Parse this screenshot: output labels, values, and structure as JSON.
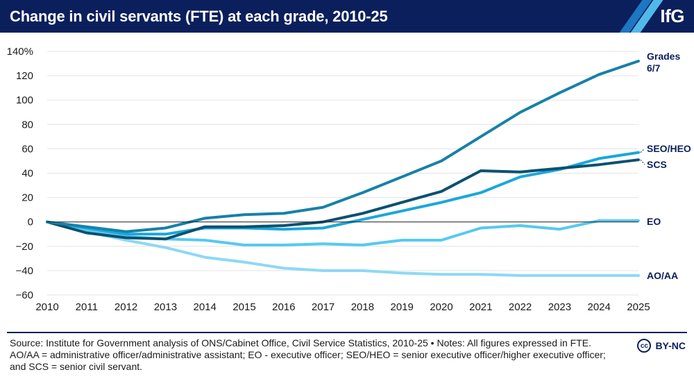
{
  "header": {
    "title": "Change in civil servants (FTE) at each grade, 2010-25",
    "logo": "IfG"
  },
  "colors": {
    "header_bg": "#0b1f5c",
    "grades67": "#1681a8",
    "seo_heo": "#1aa7dc",
    "scs": "#0c5070",
    "eo": "#56c9f0",
    "ao_aa": "#8ed8f5"
  },
  "chart_data": {
    "type": "line",
    "title": "Change in civil servants (FTE) at each grade, 2010-25",
    "xlabel": "",
    "ylabel": "",
    "x": [
      2010,
      2011,
      2012,
      2013,
      2014,
      2015,
      2016,
      2017,
      2018,
      2019,
      2020,
      2021,
      2022,
      2023,
      2024,
      2025
    ],
    "x_tick_labels": [
      "2010",
      "2011",
      "2012",
      "2013",
      "2014",
      "2015",
      "2016",
      "2017",
      "2018",
      "2019",
      "2020",
      "2021",
      "2022",
      "2023",
      "2024",
      "2025"
    ],
    "ylim": [
      -60,
      140
    ],
    "y_ticks": [
      -60,
      -40,
      -20,
      0,
      20,
      40,
      60,
      80,
      100,
      120,
      140
    ],
    "y_tick_labels": [
      "−60",
      "−40",
      "−20",
      "0",
      "20",
      "40",
      "60",
      "80",
      "100",
      "120",
      "140%"
    ],
    "grid": true,
    "series": [
      {
        "name": "AO/AA",
        "label": "AO/AA",
        "color": "#8ed8f5",
        "values": [
          0,
          -8,
          -15,
          -21,
          -29,
          -33,
          -38,
          -40,
          -40,
          -42,
          -43,
          -43,
          -44,
          -44,
          -44,
          -44
        ]
      },
      {
        "name": "EO",
        "label": "EO",
        "color": "#56c9f0",
        "values": [
          0,
          -7,
          -12,
          -14,
          -15,
          -19,
          -19,
          -18,
          -19,
          -15,
          -15,
          -5,
          -3,
          -6,
          1,
          1
        ]
      },
      {
        "name": "SEO/HEO",
        "label": "SEO/HEO",
        "color": "#1aa7dc",
        "values": [
          0,
          -5,
          -10,
          -10,
          -5,
          -5,
          -6,
          -5,
          2,
          9,
          16,
          24,
          37,
          43,
          52,
          57
        ]
      },
      {
        "name": "SCS",
        "label": "SCS",
        "color": "#0c5070",
        "values": [
          0,
          -9,
          -13,
          -14,
          -4,
          -4,
          -3,
          0,
          7,
          16,
          25,
          42,
          41,
          44,
          47,
          51
        ]
      },
      {
        "name": "Grades 6/7",
        "label": [
          "Grades",
          "6/7"
        ],
        "color": "#1681a8",
        "values": [
          0,
          -4,
          -8,
          -5,
          3,
          6,
          7,
          12,
          24,
          37,
          50,
          70,
          90,
          106,
          121,
          132
        ]
      }
    ]
  },
  "footer": {
    "source": "Source: Institute for Government analysis of ONS/Cabinet Office, Civil Service Statistics, 2010-25 • Notes: All figures expressed in FTE. AO/AA = administrative officer/administrative assistant; EO - executive officer; SEO/HEO = senior executive officer/higher executive officer; and SCS = senior civil servant.",
    "license_icon": "cc",
    "license": "BY-NC"
  }
}
